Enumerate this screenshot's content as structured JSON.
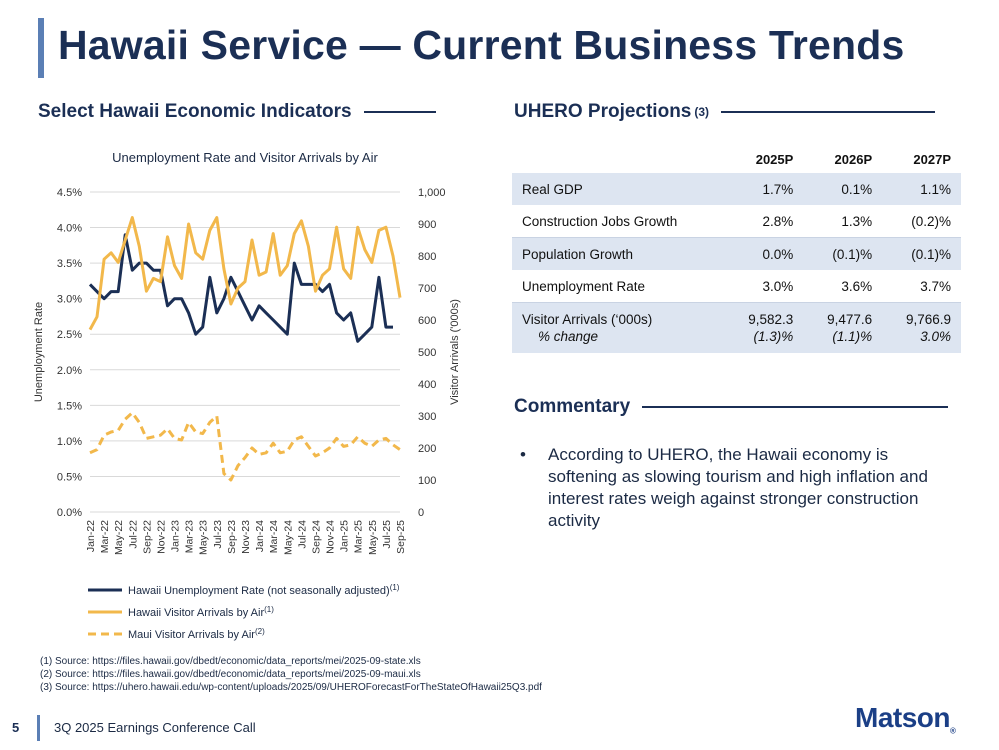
{
  "page_title": "Hawaii Service — Current Business Trends",
  "left_section": "Select Hawaii Economic Indicators",
  "right_section": "UHERO Projections",
  "right_section_note": "(3)",
  "commentary_section": "Commentary",
  "commentary_bullet": "According to UHERO, the Hawaii economy is softening as slowing tourism and high inflation and interest rates weigh against stronger construction activity",
  "table": {
    "headers": [
      "2025P",
      "2026P",
      "2027P"
    ],
    "rows": [
      {
        "label": "Real GDP",
        "values": [
          "1.7%",
          "0.1%",
          "1.1%"
        ]
      },
      {
        "label": "Construction Jobs Growth",
        "values": [
          "2.8%",
          "1.3%",
          "(0.2)%"
        ]
      },
      {
        "label": "Population Growth",
        "values": [
          "0.0%",
          "(0.1)%",
          "(0.1)%"
        ]
      },
      {
        "label": "Unemployment Rate",
        "values": [
          "3.0%",
          "3.6%",
          "3.7%"
        ]
      },
      {
        "label": "Visitor Arrivals  (‘000s)",
        "values": [
          "9,582.3",
          "9,477.6",
          "9,766.9"
        ],
        "sublabel": "% change",
        "subvalues": [
          "(1.3)%",
          "(1.1)%",
          "3.0%"
        ]
      }
    ]
  },
  "notes": [
    "(1)  Source: https://files.hawaii.gov/dbedt/economic/data_reports/mei/2025-09-state.xls",
    "(2)  Source: https://files.hawaii.gov/dbedt/economic/data_reports/mei/2025-09-maui.xls",
    "(3)  Source: https://uhero.hawaii.edu/wp-content/uploads/2025/09/UHEROForecastForTheStateOfHawaii25Q3.pdf"
  ],
  "footer": {
    "page_number": "5",
    "event": "3Q 2025 Earnings Conference Call",
    "logo": "Matson",
    "logo_mark": "®"
  },
  "chart_data": {
    "type": "line",
    "title": "Unemployment Rate and Visitor Arrivals by Air",
    "ylabel_left": "Unemployment Rate",
    "ylabel_right": "Visitor Arrivals ('000s)",
    "ylim_left": [
      0,
      4.5
    ],
    "ylim_right": [
      0,
      1000
    ],
    "yticks_left": [
      "0.0%",
      "0.5%",
      "1.0%",
      "1.5%",
      "2.0%",
      "2.5%",
      "3.0%",
      "3.5%",
      "4.0%",
      "4.5%"
    ],
    "yticks_right": [
      "0",
      "100",
      "200",
      "300",
      "400",
      "500",
      "600",
      "700",
      "800",
      "900",
      "1,000"
    ],
    "x_tick_labels": [
      "Jan-22",
      "Mar-22",
      "May-22",
      "Jul-22",
      "Sep-22",
      "Nov-22",
      "Jan-23",
      "Mar-23",
      "May-23",
      "Jul-23",
      "Sep-23",
      "Nov-23",
      "Jan-24",
      "Mar-24",
      "May-24",
      "Jul-24",
      "Sep-24",
      "Nov-24",
      "Jan-25",
      "Mar-25",
      "May-25",
      "Jul-25",
      "Sep-25"
    ],
    "grid": true,
    "legend_position": "bottom",
    "colors": {
      "unemployment": "#1b2f55",
      "visitors": "#f2b84b",
      "maui": "#f2b84b"
    },
    "series": [
      {
        "name": "Hawaii Unemployment Rate (not seasonally adjusted)",
        "note": "(1)",
        "axis": "left",
        "style": "solid",
        "values": [
          3.2,
          3.1,
          3.0,
          3.1,
          3.1,
          3.9,
          3.4,
          3.5,
          3.5,
          3.4,
          3.4,
          2.9,
          3.0,
          3.0,
          2.8,
          2.5,
          2.6,
          3.3,
          2.8,
          3.0,
          3.3,
          3.1,
          2.9,
          2.7,
          2.9,
          2.8,
          2.7,
          2.6,
          2.5,
          3.5,
          3.2,
          3.2,
          3.2,
          3.1,
          3.2,
          2.8,
          2.7,
          2.8,
          2.4,
          2.5,
          2.6,
          3.3,
          2.6,
          2.6
        ]
      },
      {
        "name": "Hawaii Visitor Arrivals by Air",
        "note": "(1)",
        "axis": "right",
        "style": "solid",
        "values": [
          570,
          610,
          790,
          810,
          780,
          850,
          920,
          830,
          690,
          730,
          720,
          860,
          770,
          730,
          900,
          810,
          790,
          880,
          920,
          760,
          650,
          700,
          720,
          850,
          740,
          750,
          870,
          740,
          770,
          870,
          910,
          830,
          690,
          740,
          760,
          890,
          760,
          730,
          890,
          820,
          780,
          880,
          890,
          800,
          670
        ]
      },
      {
        "name": "Maui Visitor Arrivals by Air",
        "note": "(2)",
        "axis": "right",
        "style": "dashed",
        "values": [
          185,
          195,
          240,
          250,
          255,
          290,
          310,
          280,
          230,
          235,
          240,
          260,
          230,
          225,
          280,
          250,
          245,
          280,
          300,
          120,
          100,
          145,
          170,
          200,
          180,
          185,
          215,
          185,
          190,
          225,
          235,
          205,
          175,
          185,
          200,
          230,
          205,
          210,
          235,
          215,
          205,
          225,
          230,
          210,
          195
        ]
      }
    ]
  }
}
